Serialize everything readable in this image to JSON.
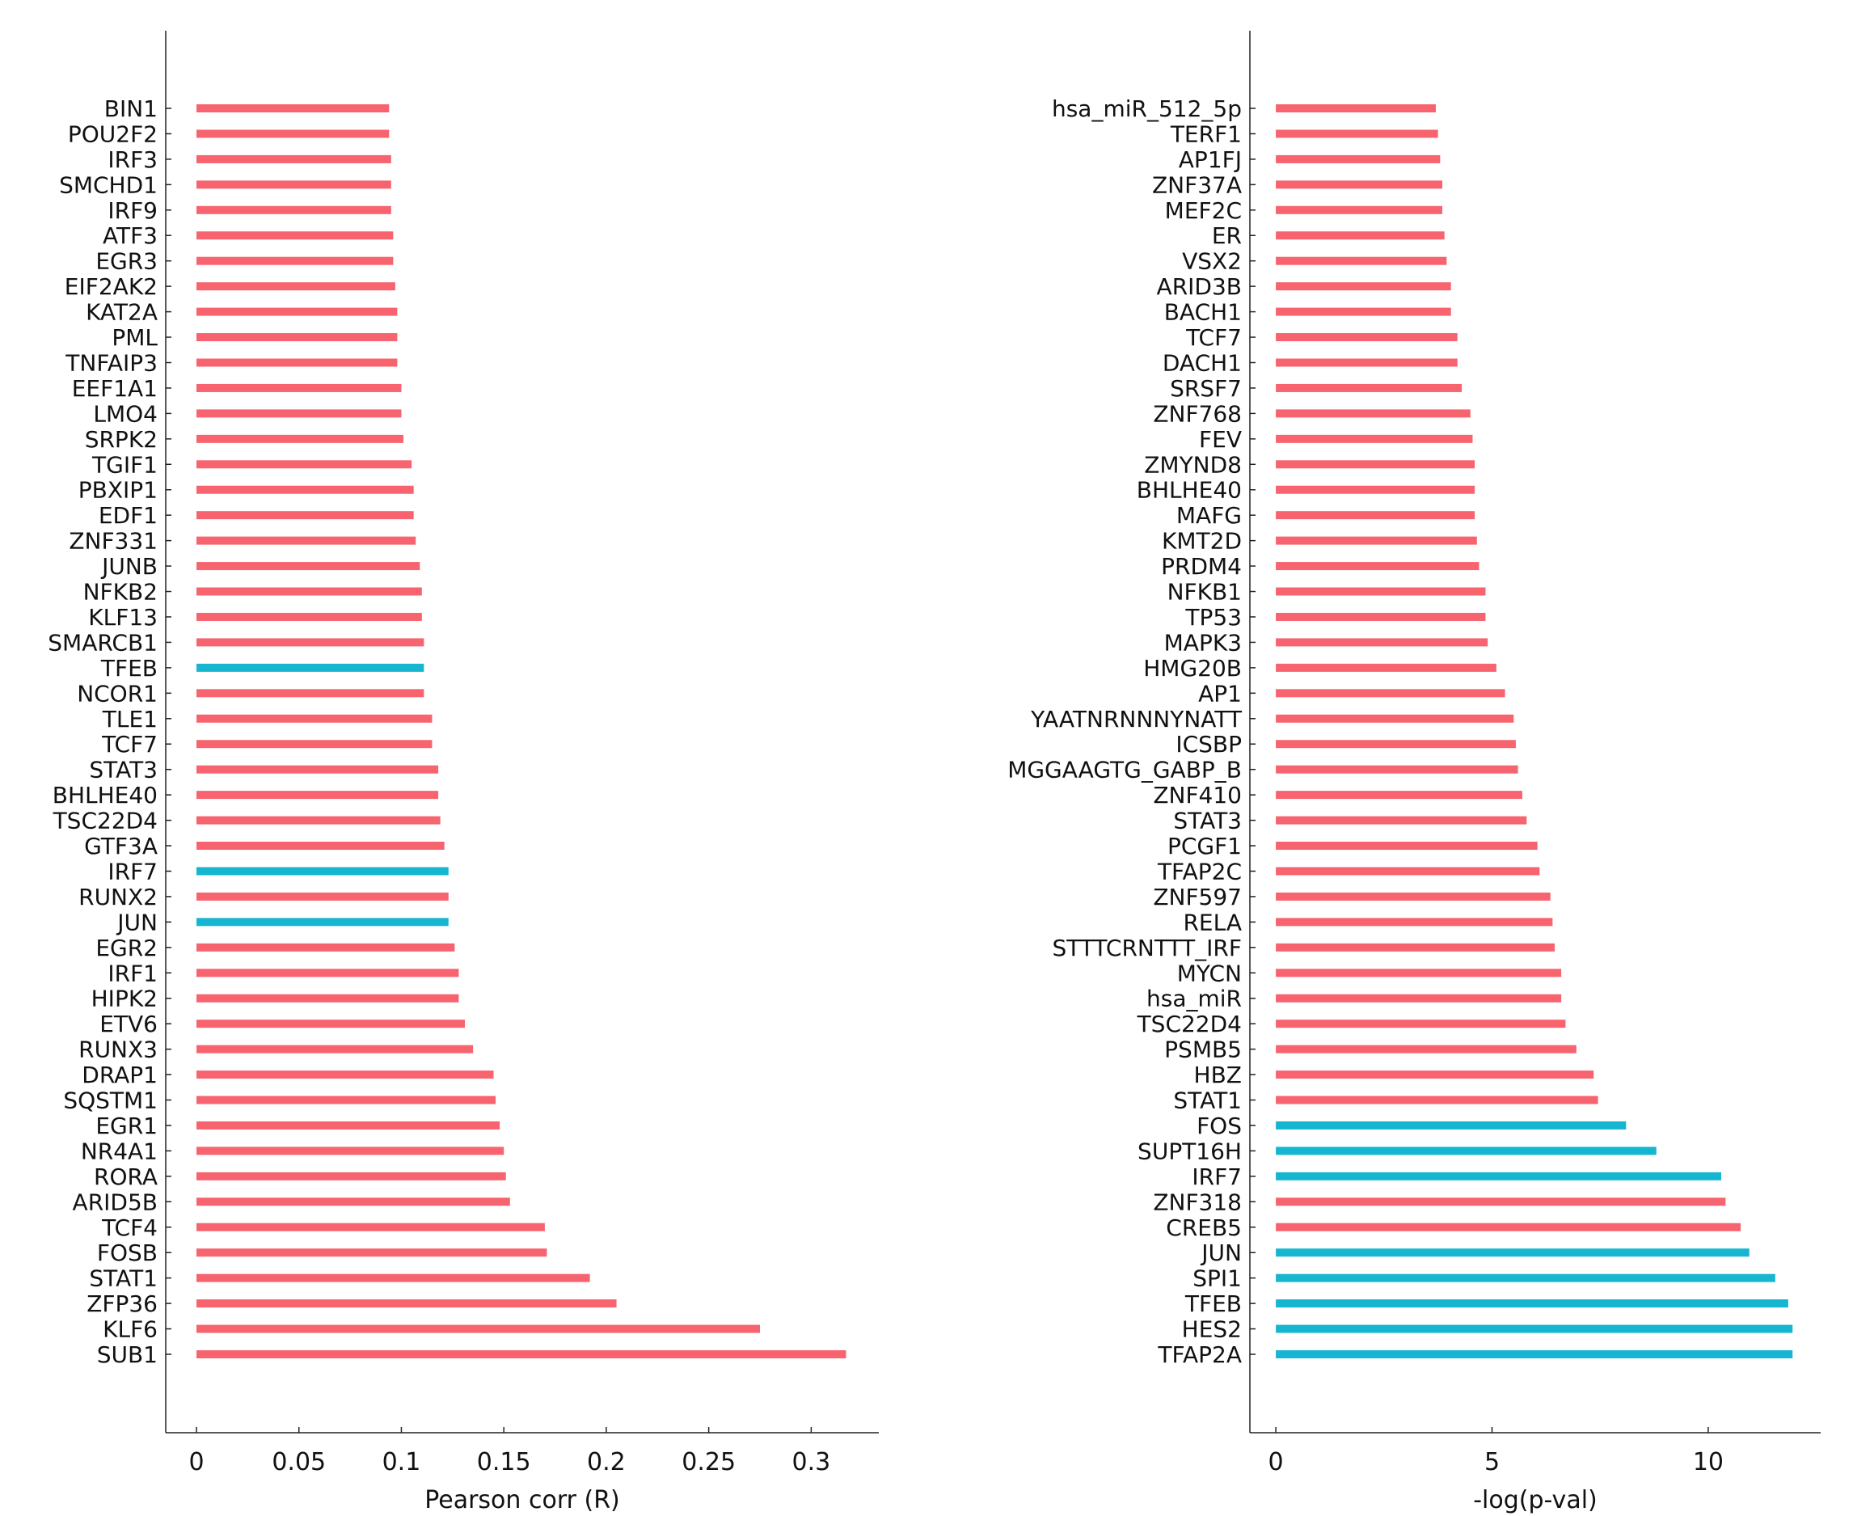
{
  "colors": {
    "default": "#f7636e",
    "highlight": "#16b6d0",
    "axis": "#222222"
  },
  "chart_data": [
    {
      "type": "bar",
      "orientation": "horizontal",
      "xlabel": "Pearson corr (R)",
      "xlim": [
        -0.015,
        0.333
      ],
      "xticks": [
        0,
        0.05,
        0.1,
        0.15,
        0.2,
        0.25,
        0.3
      ],
      "xtick_labels": [
        "0",
        "0.05",
        "0.1",
        "0.15",
        "0.2",
        "0.25",
        "0.3"
      ],
      "grid": false,
      "categories": [
        "BIN1",
        "POU2F2",
        "IRF3",
        "SMCHD1",
        "IRF9",
        "ATF3",
        "EGR3",
        "EIF2AK2",
        "KAT2A",
        "PML",
        "TNFAIP3",
        "EEF1A1",
        "LMO4",
        "SRPK2",
        "TGIF1",
        "PBXIP1",
        "EDF1",
        "ZNF331",
        "JUNB",
        "NFKB2",
        "KLF13",
        "SMARCB1",
        "TFEB",
        "NCOR1",
        "TLE1",
        "TCF7",
        "STAT3",
        "BHLHE40",
        "TSC22D4",
        "GTF3A",
        "IRF7",
        "RUNX2",
        "JUN",
        "EGR2",
        "IRF1",
        "HIPK2",
        "ETV6",
        "RUNX3",
        "DRAP1",
        "SQSTM1",
        "EGR1",
        "NR4A1",
        "RORA",
        "ARID5B",
        "TCF4",
        "FOSB",
        "STAT1",
        "ZFP36",
        "KLF6",
        "SUB1"
      ],
      "values": [
        0.094,
        0.094,
        0.095,
        0.095,
        0.095,
        0.096,
        0.096,
        0.097,
        0.098,
        0.098,
        0.098,
        0.1,
        0.1,
        0.101,
        0.105,
        0.106,
        0.106,
        0.107,
        0.109,
        0.11,
        0.11,
        0.111,
        0.111,
        0.111,
        0.115,
        0.115,
        0.118,
        0.118,
        0.119,
        0.121,
        0.123,
        0.123,
        0.123,
        0.126,
        0.128,
        0.128,
        0.131,
        0.135,
        0.145,
        0.146,
        0.148,
        0.15,
        0.151,
        0.153,
        0.17,
        0.171,
        0.192,
        0.205,
        0.275,
        0.317
      ],
      "highlighted": [
        "TFEB",
        "IRF7",
        "JUN"
      ]
    },
    {
      "type": "bar",
      "orientation": "horizontal",
      "xlabel": "-log(p-val)",
      "xlim": [
        -0.6,
        12.6
      ],
      "xticks": [
        0,
        5,
        10
      ],
      "xtick_labels": [
        "0",
        "5",
        "10"
      ],
      "grid": false,
      "categories": [
        "hsa_miR_512_5p",
        "TERF1",
        "AP1FJ",
        "ZNF37A",
        "MEF2C",
        "ER",
        "VSX2",
        "ARID3B",
        "BACH1",
        "TCF7",
        "DACH1",
        "SRSF7",
        "ZNF768",
        "FEV",
        "ZMYND8",
        "BHLHE40",
        "MAFG",
        "KMT2D",
        "PRDM4",
        "NFKB1",
        "TP53",
        "MAPK3",
        "HMG20B",
        "AP1",
        "YAATNRNNNYNATT",
        "ICSBP",
        "MGGAAGTG_GABP_B",
        "ZNF410",
        "STAT3",
        "PCGF1",
        "TFAP2C",
        "ZNF597",
        "RELA",
        "STTTCRNTTT_IRF",
        "MYCN",
        "hsa_miR",
        "TSC22D4",
        "PSMB5",
        "HBZ",
        "STAT1",
        "FOS",
        "SUPT16H",
        "IRF7",
        "ZNF318",
        "CREB5",
        "JUN",
        "SPI1",
        "TFEB",
        "HES2",
        "TFAP2A"
      ],
      "values": [
        3.7,
        3.75,
        3.8,
        3.85,
        3.85,
        3.9,
        3.95,
        4.05,
        4.05,
        4.2,
        4.2,
        4.3,
        4.5,
        4.55,
        4.6,
        4.6,
        4.6,
        4.65,
        4.7,
        4.85,
        4.85,
        4.9,
        5.1,
        5.3,
        5.5,
        5.55,
        5.6,
        5.7,
        5.8,
        6.05,
        6.1,
        6.35,
        6.4,
        6.45,
        6.6,
        6.6,
        6.7,
        6.95,
        7.35,
        7.45,
        8.1,
        8.8,
        10.3,
        10.4,
        10.75,
        10.95,
        11.55,
        11.85,
        11.95,
        11.95
      ],
      "highlighted": [
        "FOS",
        "SUPT16H",
        "IRF7",
        "JUN",
        "SPI1",
        "TFEB",
        "HES2",
        "TFAP2A"
      ]
    }
  ]
}
